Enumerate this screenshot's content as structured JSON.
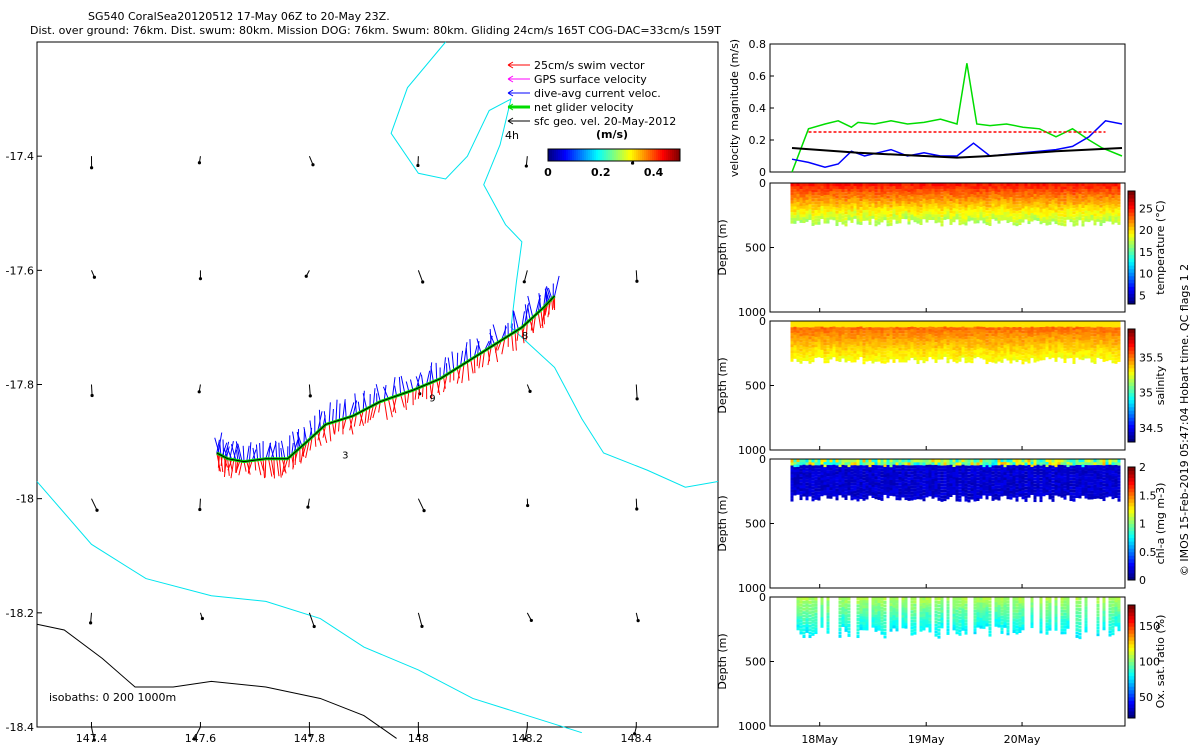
{
  "header": {
    "title": "SG540 CoralSea20120512 17-May 06Z to 20-May 23Z.",
    "subtitle": "Dist. over ground: 76km. Dist. swum: 80km. Mission DOG: 76km. Swum: 80km. Gliding 24cm/s 165T COG-DAC=33cm/s 159T"
  },
  "side_note": "© IMOS 15-Feb-2019 05:47:04 Hobart time. QC flags 1  2",
  "colors": {
    "swim": "#ff0000",
    "gps": "#ff00ff",
    "dac": "#0000ff",
    "net": "#00dd00",
    "sfc": "#000000",
    "coast": "#00e5ee",
    "isobath": "#000000",
    "track": "#000000"
  },
  "chart_data": [
    {
      "type": "scatter",
      "title": "",
      "x": [
        147.3,
        148.55
      ],
      "y": [
        -18.4,
        -17.2
      ],
      "xticks": [
        "147.4",
        "147.6",
        "147.8",
        "148",
        "148.2",
        "148.4"
      ],
      "yticks": [
        "-17.4",
        "-17.6",
        "-17.8",
        "-18",
        "-18.2",
        "-18.4"
      ],
      "legend": [
        "25cm/s swim vector",
        "GPS surface velocity",
        "dive-avg current veloc.",
        "net glider velocity",
        "sfc geo. vel. 20-May-2012"
      ],
      "colorbar": {
        "label": "(m/s)",
        "ticks": [
          "0",
          "0.2",
          "0.4"
        ],
        "range": [
          0,
          0.5
        ]
      },
      "isobaths_label": "isobaths: 0   200  1000m",
      "track_labels": [
        "4h",
        "8",
        "9",
        "3"
      ],
      "track": [
        [
          147.63,
          -17.92
        ],
        [
          147.65,
          -17.93
        ],
        [
          147.68,
          -17.935
        ],
        [
          147.72,
          -17.93
        ],
        [
          147.76,
          -17.93
        ],
        [
          147.79,
          -17.905
        ],
        [
          147.83,
          -17.87
        ],
        [
          147.88,
          -17.855
        ],
        [
          147.93,
          -17.83
        ],
        [
          147.99,
          -17.81
        ],
        [
          148.04,
          -17.79
        ],
        [
          148.09,
          -17.76
        ],
        [
          148.14,
          -17.73
        ],
        [
          148.19,
          -17.7
        ],
        [
          148.23,
          -17.665
        ],
        [
          148.25,
          -17.645
        ]
      ]
    },
    {
      "type": "line",
      "title": "",
      "ylabel": "velocity magnitude (m/s)",
      "ylim": [
        0,
        0.8
      ],
      "yticks": [
        "0",
        "0.2",
        "0.4",
        "0.6",
        "0.8"
      ],
      "series": [
        {
          "color": "#00dd00",
          "x": [
            0.0,
            0.05,
            0.1,
            0.14,
            0.18,
            0.2,
            0.25,
            0.3,
            0.35,
            0.4,
            0.45,
            0.5,
            0.53,
            0.56,
            0.6,
            0.65,
            0.7,
            0.75,
            0.8,
            0.85,
            0.9,
            0.94,
            1.0
          ],
          "values": [
            0.0,
            0.27,
            0.3,
            0.32,
            0.28,
            0.31,
            0.3,
            0.32,
            0.3,
            0.31,
            0.33,
            0.3,
            0.68,
            0.3,
            0.29,
            0.3,
            0.28,
            0.27,
            0.22,
            0.27,
            0.2,
            0.15,
            0.1
          ]
        },
        {
          "color": "#0000ff",
          "x": [
            0.0,
            0.05,
            0.1,
            0.14,
            0.18,
            0.22,
            0.26,
            0.3,
            0.35,
            0.4,
            0.45,
            0.5,
            0.55,
            0.6,
            0.65,
            0.7,
            0.75,
            0.8,
            0.85,
            0.9,
            0.95,
            1.0
          ],
          "values": [
            0.08,
            0.06,
            0.03,
            0.05,
            0.13,
            0.1,
            0.12,
            0.14,
            0.1,
            0.12,
            0.1,
            0.1,
            0.18,
            0.1,
            0.11,
            0.12,
            0.13,
            0.14,
            0.16,
            0.22,
            0.32,
            0.3
          ]
        },
        {
          "color": "#000000",
          "x": [
            0.0,
            0.2,
            0.4,
            0.5,
            0.6,
            0.8,
            1.0
          ],
          "values": [
            0.15,
            0.12,
            0.1,
            0.09,
            0.1,
            0.13,
            0.15
          ]
        },
        {
          "color": "#ff0000",
          "x": [
            0.05,
            0.95
          ],
          "values": [
            0.25,
            0.25
          ]
        }
      ]
    },
    {
      "type": "scatter",
      "title": "",
      "ylabel": "Depth (m)",
      "ylim": [
        0,
        1000
      ],
      "yticks": [
        "0",
        "500",
        "1000"
      ],
      "xticks": [
        "18May",
        "19May",
        "20May"
      ],
      "colorbar": {
        "label": "temperature (°C)",
        "ticks": [
          "5",
          "10",
          "15",
          "20",
          "25"
        ],
        "range": [
          3,
          29
        ]
      }
    },
    {
      "type": "scatter",
      "title": "",
      "ylabel": "Depth (m)",
      "ylim": [
        0,
        1000
      ],
      "yticks": [
        "0",
        "500",
        "1000"
      ],
      "xticks": [
        "18May",
        "19May",
        "20May"
      ],
      "colorbar": {
        "label": "salinity",
        "ticks": [
          "34.5",
          "35",
          "35.5"
        ],
        "range": [
          34.3,
          35.9
        ]
      }
    },
    {
      "type": "scatter",
      "title": "",
      "ylabel": "Depth (m)",
      "ylim": [
        0,
        1000
      ],
      "yticks": [
        "0",
        "500",
        "1000"
      ],
      "xticks": [
        "18May",
        "19May",
        "20May"
      ],
      "colorbar": {
        "label": "chl-a (mg m-3)",
        "ticks": [
          "0",
          "0.5",
          "1",
          "1.5",
          "2"
        ],
        "range": [
          0,
          2
        ]
      }
    },
    {
      "type": "scatter",
      "title": "",
      "ylabel": "Depth (m)",
      "ylim": [
        0,
        1000
      ],
      "yticks": [
        "0",
        "500",
        "1000"
      ],
      "xticks": [
        "18May",
        "19May",
        "20May"
      ],
      "colorbar": {
        "label": "Ox. sat. ratio (%)",
        "ticks": [
          "50",
          "100",
          "150"
        ],
        "range": [
          20,
          180
        ]
      }
    }
  ]
}
